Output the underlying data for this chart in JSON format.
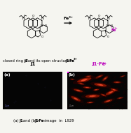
{
  "bg_color": "#f5f5f0",
  "black": "#000000",
  "magenta": "#bb00bb",
  "panel_a_label": "(a)",
  "panel_b_label": "(b)",
  "arrow_label": "Fe³⁺",
  "label_J1": "J1",
  "label_J1Fe3": "J1·Fe³⁺",
  "caption_normal": "(a) ",
  "caption_bold1": "J1",
  "caption_mid": " and (b) ",
  "caption_bold2": "J1",
  "caption_bold3": "-Fe",
  "caption_sup": "3+",
  "caption_end": " image  in  L929",
  "desc_pre": "closed ring of ",
  "desc_bold1": "J1",
  "desc_mid": " and its open structure in ",
  "desc_bold2": "J1",
  "desc_bold3": "·Fe",
  "desc_sup": "3+",
  "chem_bg": "#f5f5f0",
  "blobs": [
    [
      28,
      78,
      26,
      9,
      25,
      0.85
    ],
    [
      55,
      65,
      22,
      8,
      -15,
      0.8
    ],
    [
      72,
      45,
      20,
      7,
      40,
      0.82
    ],
    [
      42,
      35,
      24,
      9,
      5,
      0.75
    ],
    [
      18,
      50,
      16,
      6,
      -25,
      0.7
    ],
    [
      63,
      82,
      14,
      5,
      55,
      0.65
    ],
    [
      83,
      72,
      12,
      5,
      0,
      0.62
    ],
    [
      14,
      28,
      20,
      7,
      -40,
      0.7
    ],
    [
      48,
      52,
      9,
      4,
      15,
      0.78
    ],
    [
      33,
      58,
      13,
      5,
      -8,
      0.72
    ],
    [
      68,
      22,
      16,
      6,
      28,
      0.68
    ],
    [
      23,
      68,
      11,
      4,
      -18,
      0.63
    ],
    [
      53,
      87,
      15,
      5,
      38,
      0.6
    ],
    [
      78,
      52,
      13,
      5,
      -28,
      0.68
    ],
    [
      38,
      18,
      11,
      4,
      8,
      0.63
    ],
    [
      88,
      30,
      10,
      4,
      20,
      0.58
    ],
    [
      8,
      80,
      8,
      3,
      -10,
      0.55
    ],
    [
      92,
      88,
      9,
      3,
      30,
      0.55
    ],
    [
      60,
      38,
      11,
      4,
      -35,
      0.65
    ],
    [
      35,
      88,
      10,
      4,
      12,
      0.6
    ]
  ]
}
